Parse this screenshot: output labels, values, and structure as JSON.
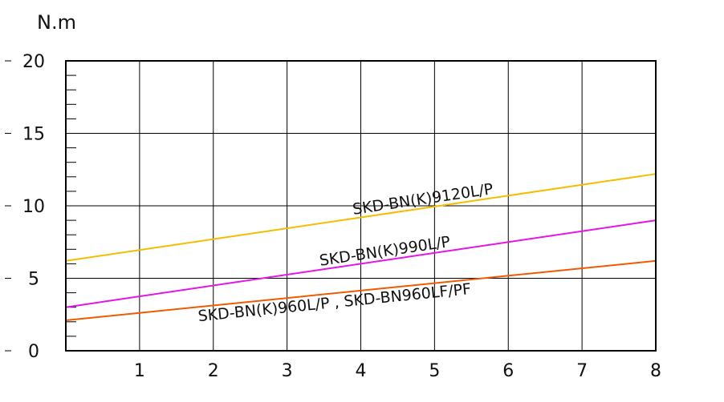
{
  "chart_data": {
    "type": "line",
    "title": "",
    "ylabel": "N.m",
    "xlabel": "",
    "xlim": [
      0,
      8
    ],
    "ylim": [
      0,
      20
    ],
    "x_ticks": [
      "1",
      "2",
      "3",
      "4",
      "5",
      "6",
      "7",
      "8"
    ],
    "y_ticks": [
      "0",
      "5",
      "10",
      "15",
      "20"
    ],
    "grid": true,
    "series": [
      {
        "name": "SKD-BN(K)9120L/P",
        "color": "#f5bd00",
        "x": [
          0,
          8
        ],
        "y": [
          6.2,
          12.2
        ]
      },
      {
        "name": "SKD-BN(K)990L/P",
        "color": "#e614e6",
        "x": [
          0,
          8
        ],
        "y": [
          3.0,
          9.0
        ]
      },
      {
        "name": "SKD-BN(K)960L/P , SKD-BN960LF/PF",
        "color": "#f05a00",
        "x": [
          0,
          8
        ],
        "y": [
          2.1,
          6.2
        ]
      }
    ]
  }
}
